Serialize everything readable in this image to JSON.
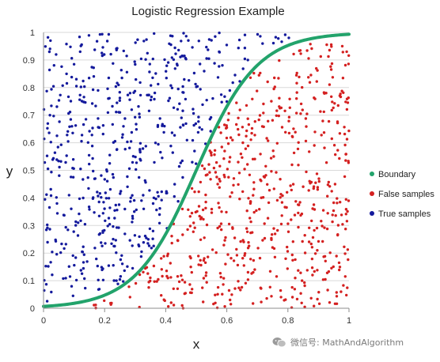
{
  "chart_data": {
    "type": "scatter",
    "title": "Logistic Regression Example",
    "xlabel": "x",
    "ylabel": "y",
    "xlim": [
      0,
      1
    ],
    "ylim": [
      0,
      1
    ],
    "xticks": [
      0,
      0.2,
      0.4,
      0.6,
      0.8,
      1
    ],
    "xtick_labels": [
      "0",
      "0.2",
      "0.4",
      "0.6",
      "0.8",
      "1"
    ],
    "yticks": [
      0,
      0.1,
      0.2,
      0.3,
      0.4,
      0.5,
      0.6,
      0.7,
      0.8,
      0.9,
      1
    ],
    "ytick_labels": [
      "0",
      "0.1",
      "0.2",
      "0.3",
      "0.4",
      "0.5",
      "0.6",
      "0.7",
      "0.8",
      "0.9",
      "1"
    ],
    "grid": "horizontal",
    "legend_position": "right",
    "boundary": {
      "function": "logistic",
      "midpoint": 0.5,
      "steepness": 10
    },
    "sample_count": 1200,
    "series": [
      {
        "name": "Boundary",
        "color": "#22a36b",
        "kind": "line"
      },
      {
        "name": "False samples",
        "color": "#d42020",
        "kind": "points",
        "rule": "below boundary"
      },
      {
        "name": "True samples",
        "color": "#141a9c",
        "kind": "points",
        "rule": "above boundary"
      }
    ]
  },
  "watermark": {
    "text": "微信号: MathAndAlgorithm",
    "icon": "wechat-icon"
  }
}
